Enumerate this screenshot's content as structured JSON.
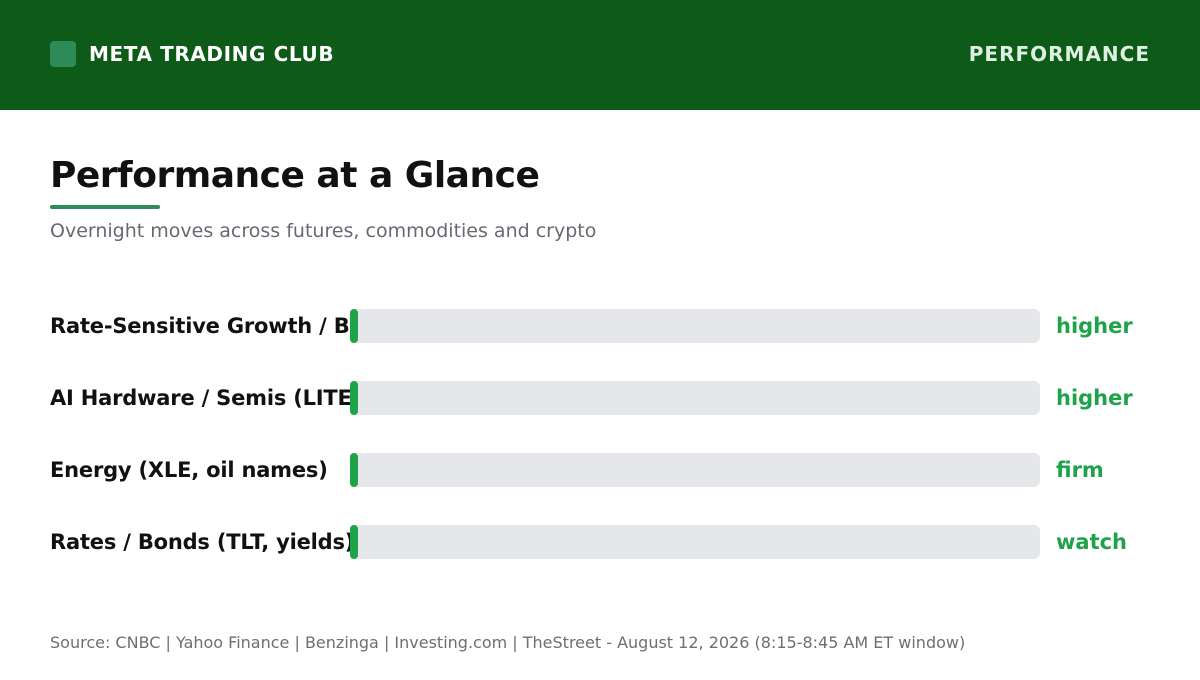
{
  "header": {
    "brand": "META TRADING CLUB",
    "section": "PERFORMANCE"
  },
  "colors": {
    "header_bg": "#0e5a18",
    "accent": "#2e8b57",
    "positive": "#1fa34a",
    "track": "#e5e7eb"
  },
  "title": "Performance at a Glance",
  "subtitle": "Overnight moves across futures, commodities and crypto",
  "footer": "Source: CNBC | Yahoo Finance | Benzinga | Investing.com | TheStreet - August 12, 2026 (8:15-8:45 AM ET window)",
  "chart_data": {
    "type": "bar",
    "orientation": "horizontal",
    "categories": [
      "Rate-Sensitive Growth / Bi",
      "AI Hardware / Semis (LITE",
      "Energy (XLE, oil names)",
      "Rates / Bonds (TLT, yields)"
    ],
    "values": [
      0.01,
      0.01,
      0.01,
      0.01
    ],
    "status": [
      "higher",
      "higher",
      "firm",
      "watch"
    ],
    "xlim": [
      0,
      1
    ],
    "grid": false,
    "legend": "none"
  }
}
